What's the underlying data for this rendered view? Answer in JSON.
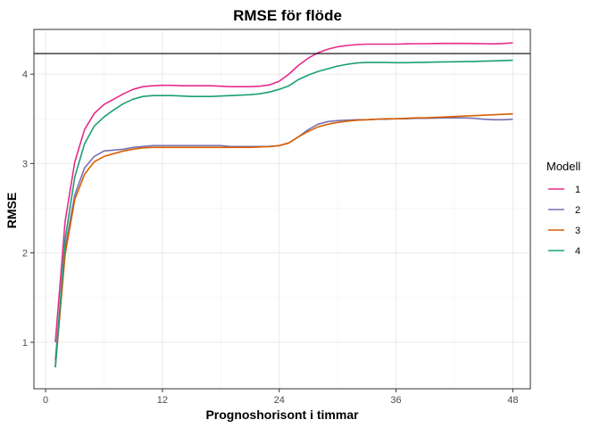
{
  "chart_data": {
    "type": "line",
    "title": "RMSE för flöde",
    "xlabel": "Prognoshorisont i timmar",
    "ylabel": "RMSE",
    "xlim": [
      -1.2,
      49.8
    ],
    "ylim": [
      0.48,
      4.5
    ],
    "x_ticks": [
      0,
      12,
      24,
      36,
      48
    ],
    "y_ticks": [
      1,
      2,
      3,
      4
    ],
    "grid": true,
    "reference_line": {
      "y": 4.23,
      "color": "#000000"
    },
    "legend": {
      "title": "Modell",
      "position": "right"
    },
    "x": [
      1,
      2,
      3,
      4,
      5,
      6,
      7,
      8,
      9,
      10,
      11,
      12,
      13,
      14,
      15,
      16,
      17,
      18,
      19,
      20,
      21,
      22,
      23,
      24,
      25,
      26,
      27,
      28,
      29,
      30,
      31,
      32,
      33,
      34,
      35,
      36,
      37,
      38,
      39,
      40,
      41,
      42,
      43,
      44,
      45,
      46,
      47,
      48
    ],
    "series": [
      {
        "name": "1",
        "color": "#E7298A",
        "values": [
          1.0,
          2.35,
          3.02,
          3.38,
          3.56,
          3.66,
          3.72,
          3.78,
          3.83,
          3.86,
          3.87,
          3.875,
          3.875,
          3.87,
          3.87,
          3.87,
          3.87,
          3.865,
          3.86,
          3.86,
          3.86,
          3.865,
          3.88,
          3.92,
          4.0,
          4.1,
          4.18,
          4.24,
          4.28,
          4.305,
          4.32,
          4.33,
          4.335,
          4.335,
          4.335,
          4.335,
          4.338,
          4.34,
          4.34,
          4.342,
          4.343,
          4.343,
          4.343,
          4.342,
          4.34,
          4.338,
          4.342,
          4.35
        ]
      },
      {
        "name": "2",
        "color": "#7570B3",
        "values": [
          0.8,
          2.05,
          2.65,
          2.95,
          3.08,
          3.14,
          3.15,
          3.16,
          3.18,
          3.19,
          3.2,
          3.2,
          3.2,
          3.2,
          3.2,
          3.2,
          3.2,
          3.2,
          3.19,
          3.19,
          3.19,
          3.19,
          3.19,
          3.2,
          3.23,
          3.3,
          3.38,
          3.44,
          3.47,
          3.48,
          3.485,
          3.49,
          3.49,
          3.495,
          3.495,
          3.5,
          3.5,
          3.505,
          3.505,
          3.508,
          3.51,
          3.51,
          3.51,
          3.505,
          3.495,
          3.49,
          3.49,
          3.495
        ]
      },
      {
        "name": "3",
        "color": "#D95F02",
        "values": [
          0.72,
          1.98,
          2.6,
          2.88,
          3.02,
          3.08,
          3.11,
          3.14,
          3.16,
          3.175,
          3.18,
          3.18,
          3.18,
          3.18,
          3.18,
          3.18,
          3.18,
          3.18,
          3.18,
          3.18,
          3.18,
          3.185,
          3.19,
          3.2,
          3.23,
          3.3,
          3.36,
          3.41,
          3.44,
          3.46,
          3.475,
          3.485,
          3.49,
          3.495,
          3.5,
          3.5,
          3.505,
          3.51,
          3.51,
          3.515,
          3.52,
          3.525,
          3.53,
          3.535,
          3.54,
          3.545,
          3.55,
          3.555
        ]
      },
      {
        "name": "4",
        "color": "#1B9E77",
        "values": [
          0.72,
          2.15,
          2.85,
          3.22,
          3.42,
          3.52,
          3.6,
          3.67,
          3.72,
          3.75,
          3.76,
          3.76,
          3.76,
          3.755,
          3.75,
          3.75,
          3.75,
          3.755,
          3.76,
          3.765,
          3.77,
          3.78,
          3.8,
          3.83,
          3.87,
          3.94,
          3.99,
          4.03,
          4.06,
          4.09,
          4.11,
          4.125,
          4.13,
          4.13,
          4.13,
          4.128,
          4.128,
          4.13,
          4.132,
          4.135,
          4.137,
          4.138,
          4.14,
          4.142,
          4.145,
          4.148,
          4.152,
          4.155
        ]
      }
    ]
  }
}
